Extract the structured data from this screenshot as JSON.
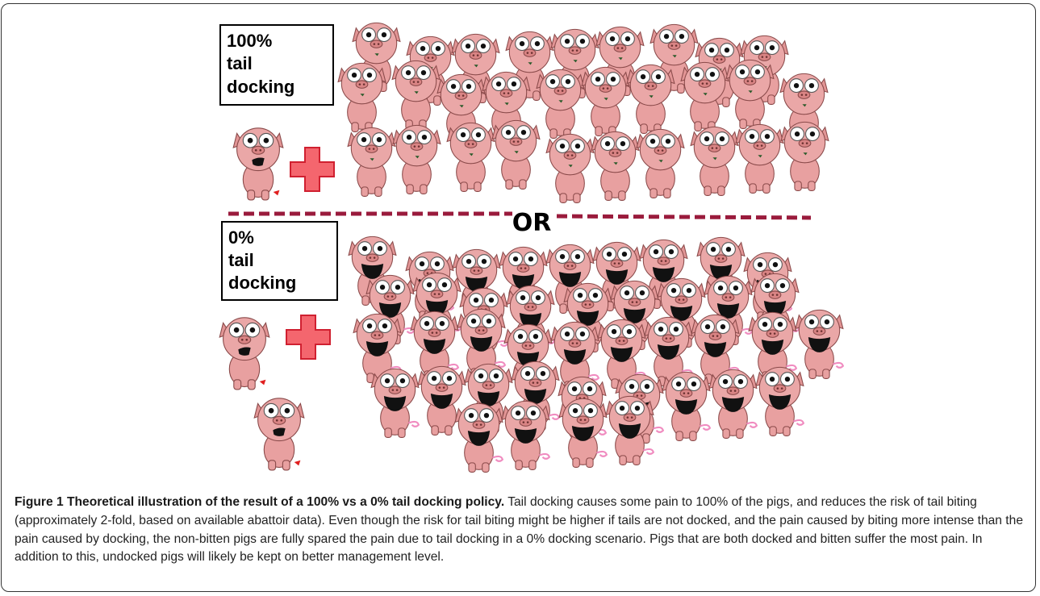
{
  "figure": {
    "panel_top": {
      "label_lines": [
        "100%",
        "tail",
        "docking"
      ]
    },
    "separator": "OR",
    "panel_bottom": {
      "label_lines": [
        "0%",
        "tail",
        "docking"
      ]
    }
  },
  "caption": {
    "label": "Figure 1 Theoretical illustration of the result of a 100% vs a 0% tail docking policy.",
    "text": "Tail docking causes some pain to 100% of the pigs, and reduces the risk of tail biting (approximately 2-fold, based on available abattoir data). Even though the risk for tail biting might be higher if tails are not docked, and the pain caused by biting more intense than the pain caused by docking, the non-bitten pigs are fully spared the pain due to tail docking in a 0% docking scenario. Pigs that are both docked and bitten suffer the most pain. In addition to this, undocked pigs will likely be kept on better management level."
  }
}
